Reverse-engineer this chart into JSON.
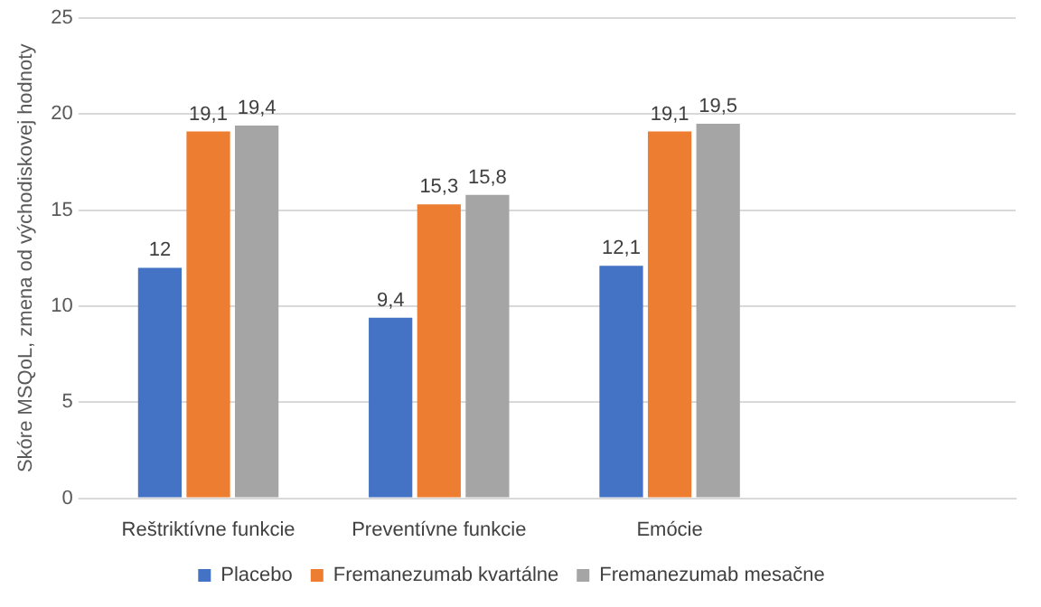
{
  "chart_data": {
    "type": "bar",
    "ylabel": "Skóre MSQoL, zmena od východiskovej hodnoty",
    "categories": [
      "Reštriktívne funkcie",
      "Preventívne funkcie",
      "Emócie",
      null
    ],
    "series": [
      {
        "name": "Placebo",
        "color": "#4472c4",
        "values": [
          12,
          9.4,
          12.1,
          null
        ],
        "value_labels": [
          "12",
          "9,4",
          "12,1",
          null
        ]
      },
      {
        "name": "Fremanezumab kvartálne",
        "color": "#ed7d31",
        "values": [
          19.1,
          15.3,
          19.1,
          null
        ],
        "value_labels": [
          "19,1",
          "15,3",
          "19,1",
          null
        ]
      },
      {
        "name": "Fremanezumab mesačne",
        "color": "#a5a5a5",
        "values": [
          19.4,
          15.8,
          19.5,
          null
        ],
        "value_labels": [
          "19,4",
          "15,8",
          "19,5",
          null
        ]
      }
    ],
    "ylim": [
      0,
      25
    ],
    "yticks": [
      0,
      5,
      10,
      15,
      20,
      25
    ],
    "grid": "y",
    "legend": "bottom"
  }
}
